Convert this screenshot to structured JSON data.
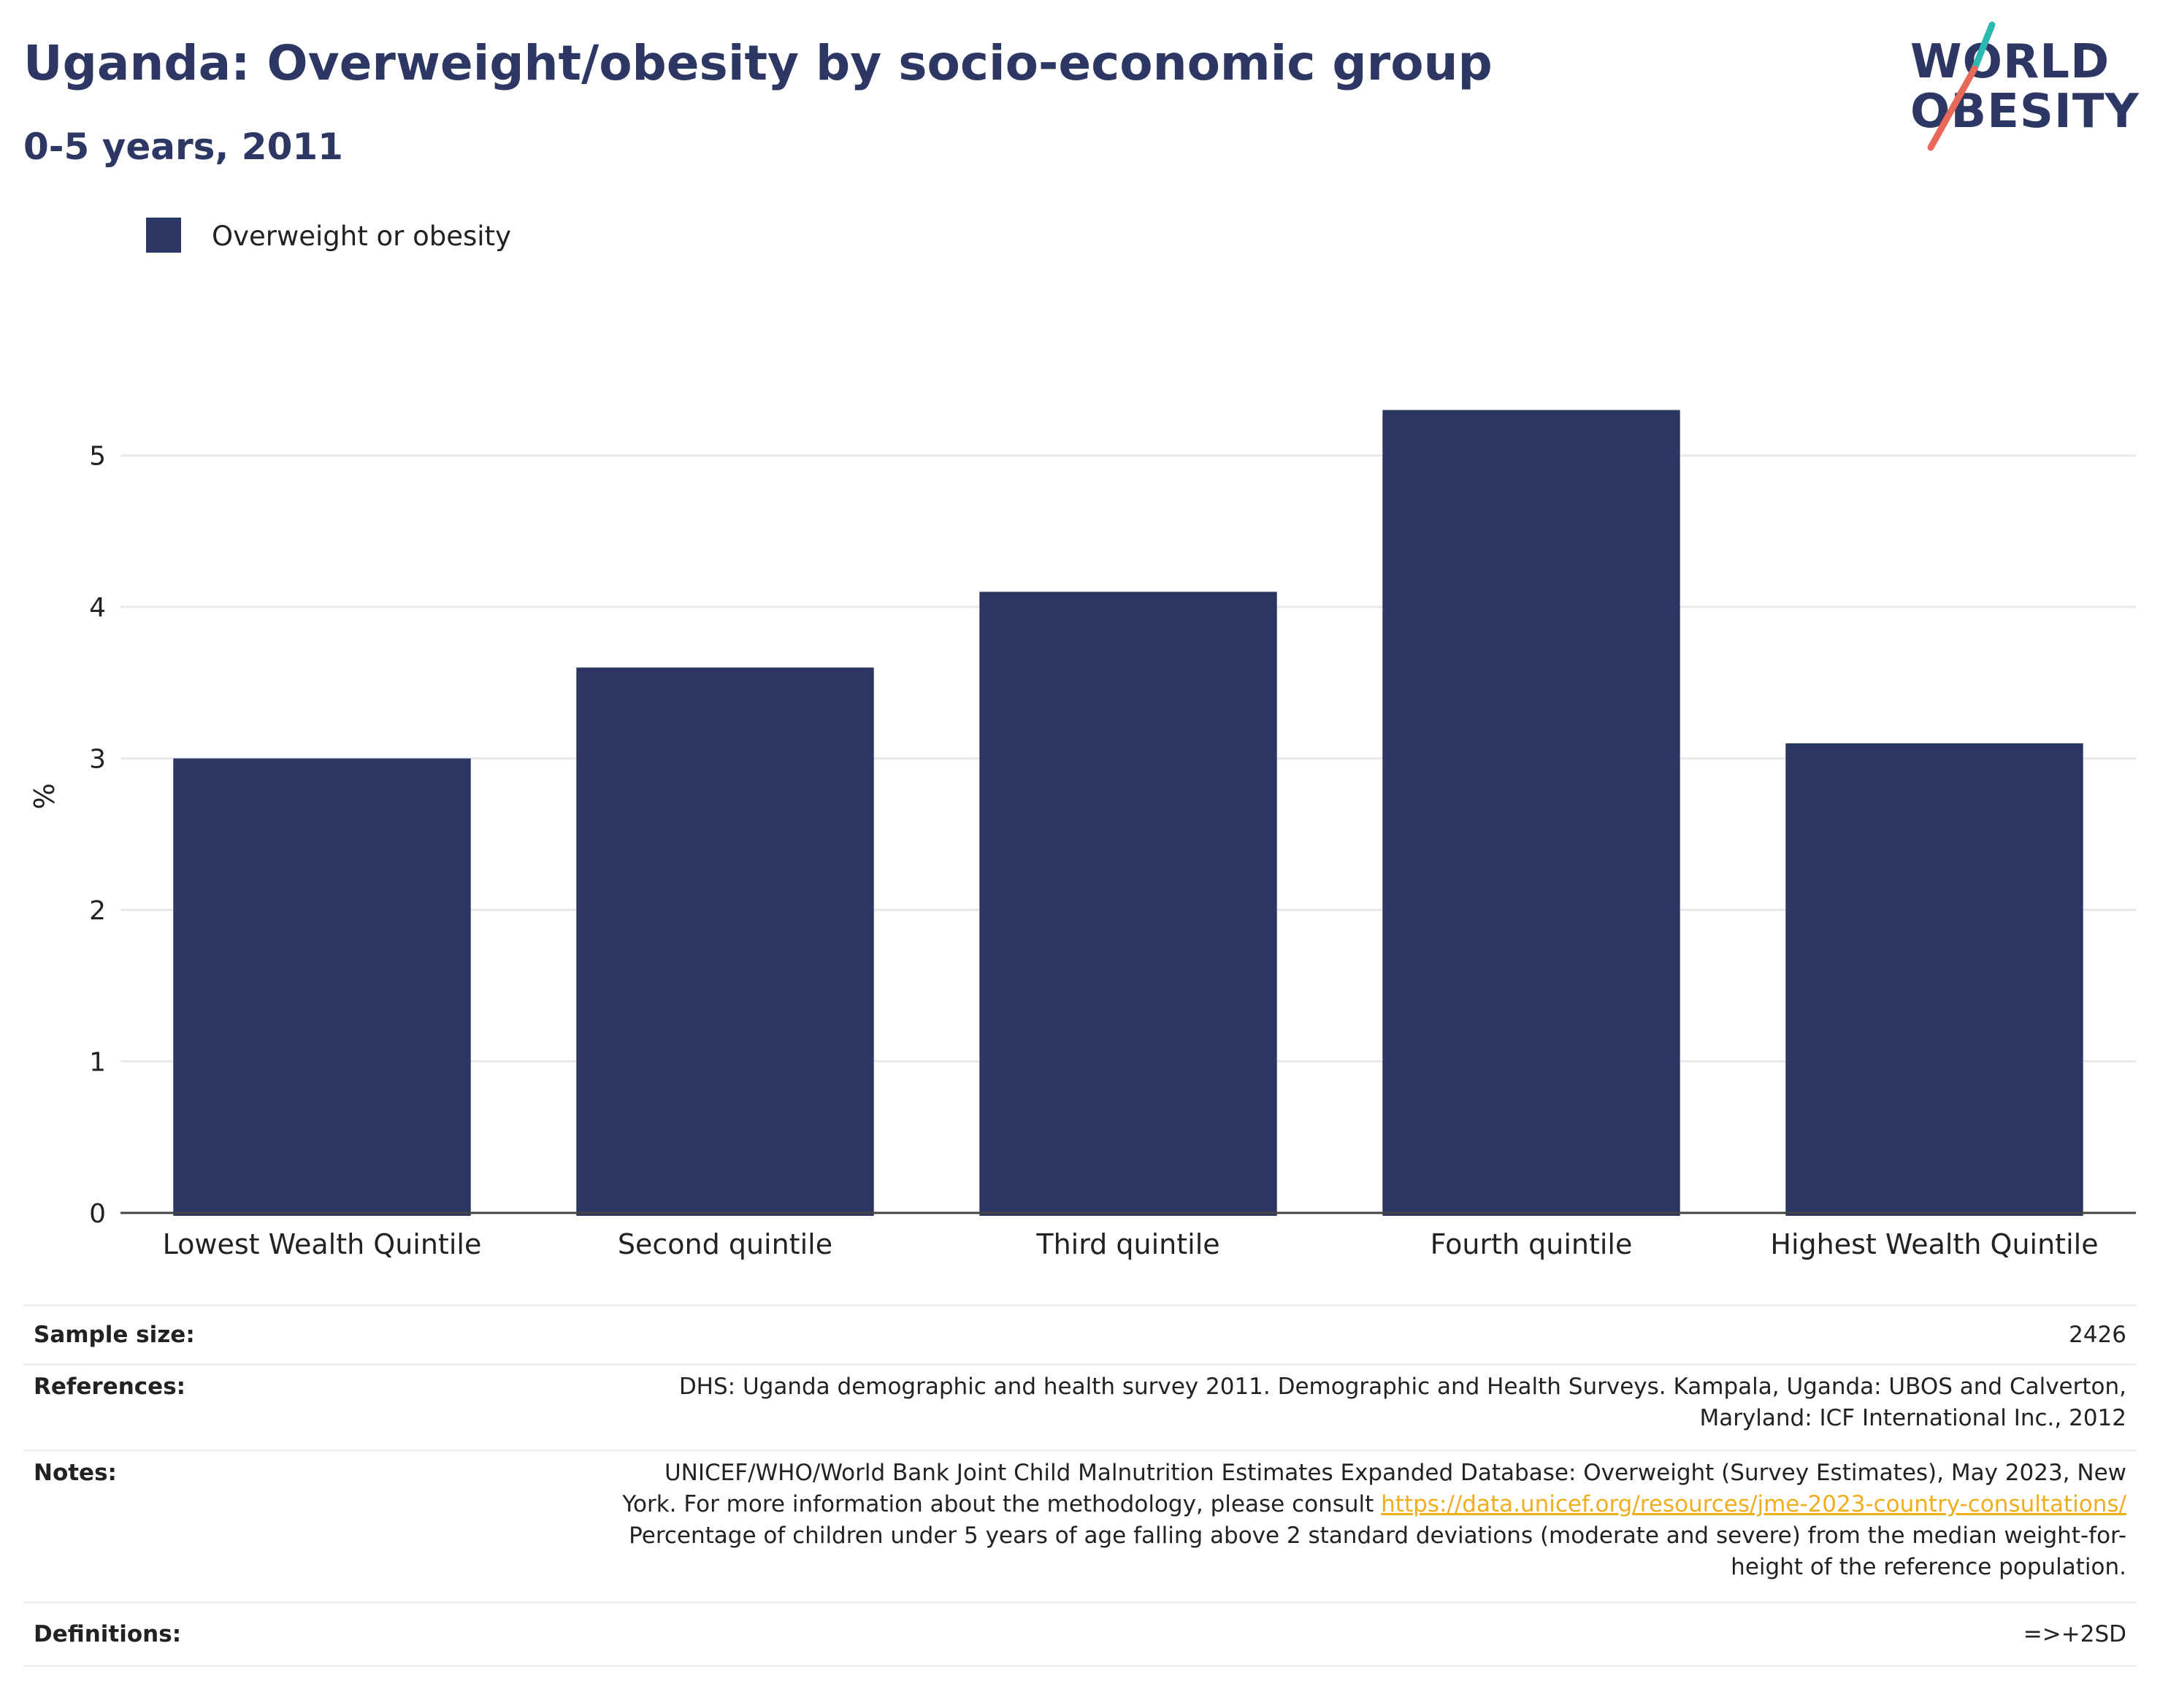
{
  "header": {
    "title": "Uganda: Overweight/obesity by socio-economic group",
    "subtitle": "0-5 years, 2011"
  },
  "logo": {
    "line1": "WORLD",
    "line2": "OBESITY",
    "accent_colors": [
      "#2bb8b0",
      "#e8685a"
    ]
  },
  "legend": {
    "label": "Overweight or obesity",
    "color": "#2b3663"
  },
  "chart_data": {
    "type": "bar",
    "categories": [
      "Lowest Wealth Quintile",
      "Second quintile",
      "Third quintile",
      "Fourth quintile",
      "Highest Wealth Quintile"
    ],
    "series": [
      {
        "name": "Overweight or obesity",
        "values": [
          3.0,
          3.6,
          4.1,
          5.3,
          3.1
        ],
        "color": "#2b3663"
      }
    ],
    "ylabel": "%",
    "xlabel": "",
    "ylim": [
      0,
      5.5
    ],
    "yticks": [
      0,
      1,
      2,
      3,
      4,
      5
    ],
    "grid": true,
    "legend_position": "top-left"
  },
  "meta": {
    "sample_size_label": "Sample size:",
    "sample_size_value": "2426",
    "references_label": "References:",
    "references_line1": "DHS: Uganda demographic and health survey 2011. Demographic and Health Surveys. Kampala, Uganda: UBOS and Calverton,",
    "references_line2": "Maryland: ICF International Inc., 2012",
    "notes_label": "Notes:",
    "notes_line1": "UNICEF/WHO/World Bank Joint Child Malnutrition Estimates Expanded Database: Overweight (Survey Estimates), May 2023, New",
    "notes_line2_prefix": "York. For more information about the methodology, please consult",
    "notes_link": "https://data.unicef.org/resources/jme-2023-country-consultations/",
    "notes_line3": "Percentage of children under 5 years of age falling above 2 standard deviations (moderate and severe) from the median weight-for-",
    "notes_line4": "height of the reference population.",
    "definitions_label": "Definitions:",
    "definitions_value": "=>+2SD"
  }
}
